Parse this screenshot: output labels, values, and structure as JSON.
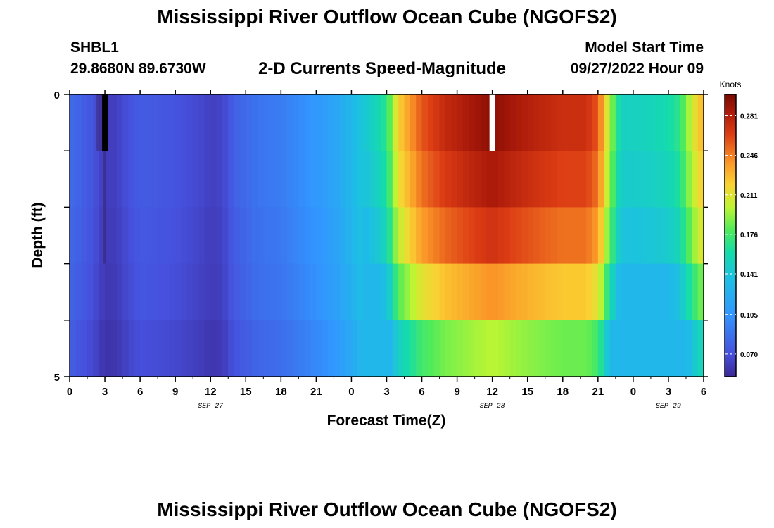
{
  "header": {
    "title": "Mississippi River Outflow Ocean Cube (NGOFS2)",
    "station": "SHBL1",
    "location": "29.8680N  89.6730W",
    "subtitle": "2-D Currents Speed-Magnitude",
    "model_start_label": "Model Start Time",
    "model_start_value": "09/27/2022 Hour 09"
  },
  "footer": {
    "title": "Mississippi River Outflow Ocean Cube (NGOFS2)"
  },
  "chart_data": {
    "type": "heatmap",
    "xlabel": "Forecast Time(Z)",
    "ylabel": "Depth (ft)",
    "x_tick_labels": [
      "0",
      "3",
      "6",
      "9",
      "12",
      "15",
      "18",
      "21",
      "0",
      "3",
      "6",
      "9",
      "12",
      "15",
      "18",
      "21",
      "0",
      "3",
      "6"
    ],
    "date_labels": [
      "SEP 27",
      "SEP 28",
      "SEP 29"
    ],
    "y_tick_labels": [
      "0",
      "5"
    ],
    "ylim": [
      0,
      5
    ],
    "colorbar": {
      "title": "Knots",
      "tick_labels": [
        "0.281",
        "0.246",
        "0.211",
        "0.176",
        "0.141",
        "0.105",
        "0.070"
      ],
      "range": [
        0.05,
        0.3
      ]
    },
    "hours": [
      0,
      54
    ],
    "layers": 5,
    "profile": [
      [
        0,
        0.084
      ],
      [
        1,
        0.078
      ],
      [
        2,
        0.072
      ],
      [
        3,
        0.06
      ],
      [
        4,
        0.062
      ],
      [
        5,
        0.07
      ],
      [
        6,
        0.076
      ],
      [
        9,
        0.072
      ],
      [
        11,
        0.066
      ],
      [
        12,
        0.062
      ],
      [
        13,
        0.064
      ],
      [
        14,
        0.078
      ],
      [
        16,
        0.088
      ],
      [
        18,
        0.092
      ],
      [
        20,
        0.102
      ],
      [
        22,
        0.112
      ],
      [
        23,
        0.12
      ],
      [
        24,
        0.13
      ],
      [
        25,
        0.142
      ],
      [
        26,
        0.152
      ],
      [
        27,
        0.168
      ],
      [
        28,
        0.22
      ],
      [
        30,
        0.258
      ],
      [
        32,
        0.275
      ],
      [
        34,
        0.285
      ],
      [
        36,
        0.294
      ],
      [
        38,
        0.285
      ],
      [
        40,
        0.278
      ],
      [
        42,
        0.272
      ],
      [
        44,
        0.272
      ],
      [
        45,
        0.258
      ],
      [
        46,
        0.196
      ],
      [
        47,
        0.15
      ],
      [
        49,
        0.152
      ],
      [
        51,
        0.158
      ],
      [
        52,
        0.17
      ],
      [
        53,
        0.205
      ],
      [
        54,
        0.232
      ]
    ],
    "layer_scale_bright": [
      1.0,
      0.97,
      0.92,
      0.82,
      0.68
    ],
    "layer_scale_dim": [
      1.0,
      1.0,
      0.98,
      0.96,
      0.92
    ],
    "marker_black": [
      3,
      0
    ],
    "marker_white": [
      36,
      0
    ]
  }
}
